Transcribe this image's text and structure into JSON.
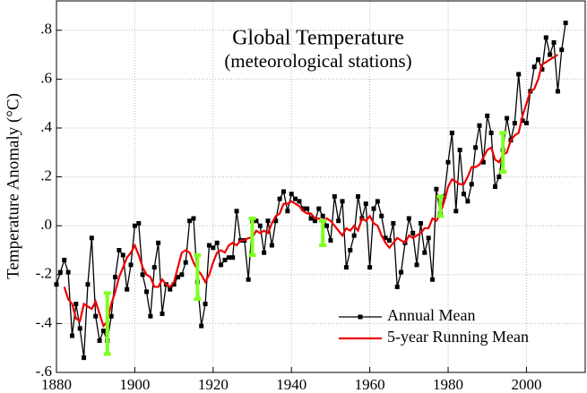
{
  "chart_data": {
    "type": "line",
    "title": "Global Temperature",
    "subtitle": "(meteorological stations)",
    "y_label": "Temperature Anomaly (°C)",
    "x": [
      1880,
      1881,
      1882,
      1883,
      1884,
      1885,
      1886,
      1887,
      1888,
      1889,
      1890,
      1891,
      1892,
      1893,
      1894,
      1895,
      1896,
      1897,
      1898,
      1899,
      1900,
      1901,
      1902,
      1903,
      1904,
      1905,
      1906,
      1907,
      1908,
      1909,
      1910,
      1911,
      1912,
      1913,
      1914,
      1915,
      1916,
      1917,
      1918,
      1919,
      1920,
      1921,
      1922,
      1923,
      1924,
      1925,
      1926,
      1927,
      1928,
      1929,
      1930,
      1931,
      1932,
      1933,
      1934,
      1935,
      1936,
      1937,
      1938,
      1939,
      1940,
      1941,
      1942,
      1943,
      1944,
      1945,
      1946,
      1947,
      1948,
      1949,
      1950,
      1951,
      1952,
      1953,
      1954,
      1955,
      1956,
      1957,
      1958,
      1959,
      1960,
      1961,
      1962,
      1963,
      1964,
      1965,
      1966,
      1967,
      1968,
      1969,
      1970,
      1971,
      1972,
      1973,
      1974,
      1975,
      1976,
      1977,
      1978,
      1979,
      1980,
      1981,
      1982,
      1983,
      1984,
      1985,
      1986,
      1987,
      1988,
      1989,
      1990,
      1991,
      1992,
      1993,
      1994,
      1995,
      1996,
      1997,
      1998,
      1999,
      2000,
      2001,
      2002,
      2003,
      2004,
      2005,
      2006,
      2007,
      2008,
      2009,
      2010
    ],
    "series": [
      {
        "name": "Annual Mean",
        "color": "#000000",
        "marker": "square",
        "values": [
          -0.24,
          -0.19,
          -0.14,
          -0.19,
          -0.45,
          -0.32,
          -0.42,
          -0.54,
          -0.24,
          -0.05,
          -0.37,
          -0.47,
          -0.43,
          -0.47,
          -0.37,
          -0.21,
          -0.1,
          -0.12,
          -0.26,
          -0.16,
          0.0,
          0.01,
          -0.2,
          -0.27,
          -0.37,
          -0.17,
          -0.07,
          -0.36,
          -0.24,
          -0.26,
          -0.24,
          -0.21,
          -0.2,
          -0.15,
          0.02,
          0.03,
          -0.23,
          -0.41,
          -0.32,
          -0.08,
          -0.09,
          -0.07,
          -0.16,
          -0.14,
          -0.13,
          -0.13,
          0.06,
          -0.06,
          -0.06,
          -0.22,
          0.02,
          0.02,
          0.0,
          -0.11,
          0.02,
          -0.08,
          0.02,
          0.11,
          0.14,
          0.06,
          0.13,
          0.11,
          0.1,
          0.07,
          0.07,
          0.03,
          0.02,
          0.07,
          0.04,
          0.0,
          -0.06,
          0.12,
          0.02,
          0.1,
          -0.17,
          -0.1,
          -0.04,
          0.12,
          0.03,
          0.09,
          -0.17,
          0.07,
          0.1,
          0.04,
          -0.05,
          -0.06,
          0.01,
          -0.25,
          -0.19,
          -0.07,
          0.03,
          -0.03,
          -0.16,
          0.01,
          -0.11,
          -0.05,
          -0.22,
          0.15,
          0.05,
          0.12,
          0.26,
          0.38,
          0.06,
          0.31,
          0.13,
          0.1,
          0.17,
          0.32,
          0.41,
          0.26,
          0.45,
          0.38,
          0.16,
          0.2,
          0.31,
          0.44,
          0.35,
          0.42,
          0.62,
          0.43,
          0.42,
          0.55,
          0.65,
          0.68,
          0.64,
          0.77,
          0.7,
          0.75,
          0.55,
          0.72,
          0.83
        ]
      },
      {
        "name": "5-year Running Mean",
        "color": "#ee0000",
        "values": [
          null,
          null,
          -0.25,
          -0.3,
          -0.32,
          -0.38,
          -0.39,
          -0.32,
          -0.33,
          -0.34,
          -0.31,
          -0.36,
          -0.41,
          -0.39,
          -0.32,
          -0.27,
          -0.21,
          -0.17,
          -0.13,
          -0.11,
          -0.08,
          -0.12,
          -0.17,
          -0.2,
          -0.21,
          -0.25,
          -0.25,
          -0.22,
          -0.24,
          -0.25,
          -0.23,
          -0.17,
          -0.11,
          -0.1,
          -0.11,
          -0.15,
          -0.18,
          -0.2,
          -0.23,
          -0.2,
          -0.15,
          -0.11,
          -0.1,
          -0.11,
          -0.08,
          -0.07,
          -0.08,
          -0.06,
          -0.06,
          -0.05,
          -0.05,
          -0.02,
          -0.03,
          -0.02,
          -0.03,
          0.01,
          0.04,
          0.05,
          0.09,
          0.09,
          0.1,
          0.09,
          0.08,
          0.06,
          0.05,
          0.05,
          0.03,
          0.03,
          0.01,
          0.03,
          0.02,
          0.0,
          -0.02,
          -0.04,
          -0.01,
          -0.02,
          0.0,
          -0.02,
          0.03,
          0.02,
          0.04,
          0.01,
          0.0,
          -0.04,
          -0.07,
          -0.09,
          -0.07,
          -0.05,
          -0.06,
          -0.07,
          -0.04,
          -0.05,
          -0.04,
          -0.03,
          -0.01,
          -0.01,
          0.03,
          0.02,
          0.05,
          0.1,
          0.16,
          0.19,
          0.18,
          0.17,
          0.17,
          0.2,
          0.24,
          0.24,
          0.25,
          0.28,
          0.31,
          0.32,
          0.27,
          0.26,
          0.29,
          0.3,
          0.35,
          0.37,
          0.38,
          0.45,
          0.5,
          0.55,
          0.56,
          0.6,
          0.66,
          0.67,
          0.68,
          0.69,
          0.7,
          null,
          null
        ]
      }
    ],
    "error_bars": {
      "color": "#80ff20",
      "x": [
        1893,
        1916,
        1930,
        1948,
        1978,
        1994
      ],
      "values": [
        -0.4,
        -0.21,
        -0.045,
        -0.03,
        0.08,
        0.3
      ],
      "errors": [
        0.125,
        0.09,
        0.075,
        0.05,
        0.04,
        0.08
      ]
    },
    "xlim": [
      1880,
      2015
    ],
    "xticks": [
      1880,
      1900,
      1920,
      1940,
      1960,
      1980,
      2000
    ],
    "ylim": [
      -0.6,
      0.92
    ],
    "yticks": [
      {
        "value": -0.6,
        "label": "-.6"
      },
      {
        "value": -0.4,
        "label": "-.4"
      },
      {
        "value": -0.2,
        "label": "-.2"
      },
      {
        "value": 0,
        "label": ".0"
      },
      {
        "value": 0.2,
        "label": ".2"
      },
      {
        "value": 0.4,
        "label": ".4"
      },
      {
        "value": 0.6,
        "label": ".6"
      },
      {
        "value": 0.8,
        "label": ".8"
      }
    ],
    "grid": true,
    "legend": "lower right"
  }
}
